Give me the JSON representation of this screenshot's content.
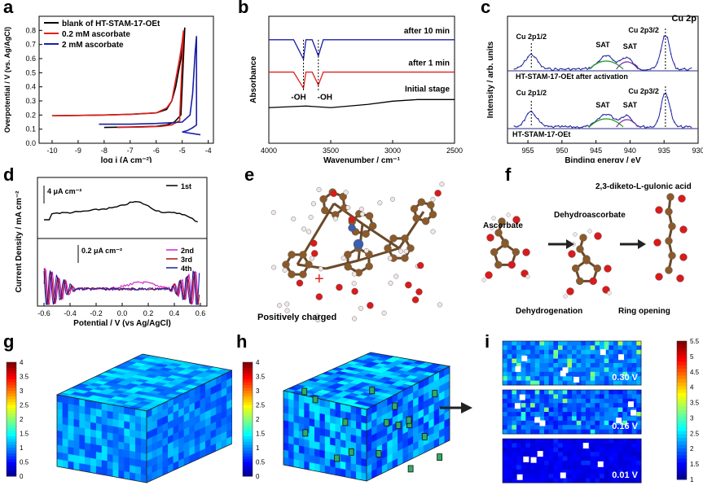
{
  "panel_letters": [
    "a",
    "b",
    "c",
    "d",
    "e",
    "f",
    "g",
    "h",
    "i"
  ],
  "chart_data": [
    {
      "type": "line",
      "panel": "a",
      "xlabel": "log i (A cm⁻²)",
      "ylabel": "Overpotential / V (vs. Ag/AgCl)",
      "xlim": [
        -10.5,
        -3.8
      ],
      "ylim": [
        0,
        0.9
      ],
      "xticks": [
        "-10",
        "-9",
        "-8",
        "-7",
        "-6",
        "-5",
        "-4"
      ],
      "yticks": [
        "0.0",
        "0.1",
        "0.2",
        "0.3",
        "0.4",
        "0.5",
        "0.6",
        "0.7",
        "0.8"
      ],
      "legend_position": "top-left",
      "series": [
        {
          "name": "blank of HT-STAM-17-OEt",
          "color": "#000000",
          "x": [
            -10,
            -9,
            -8,
            -7,
            -6,
            -5.6,
            -5.4,
            -5.25,
            -5.15,
            -5.05,
            -4.95,
            -4.9,
            -5.05,
            -5.3,
            -5.6,
            -6,
            -7,
            -8
          ],
          "y": [
            0.195,
            0.197,
            0.2,
            0.205,
            0.215,
            0.24,
            0.3,
            0.4,
            0.5,
            0.6,
            0.72,
            0.82,
            0.2,
            0.15,
            0.13,
            0.12,
            0.115,
            0.112
          ]
        },
        {
          "name": "0.2 mM ascorbate",
          "color": "#e0201b",
          "x": [
            -10,
            -9,
            -8,
            -7,
            -6,
            -5.6,
            -5.4,
            -5.3,
            -5.2,
            -5.1,
            -5.0,
            -4.95,
            -5.1,
            -5.4,
            -5.8,
            -6.5,
            -7.5
          ],
          "y": [
            0.195,
            0.197,
            0.2,
            0.205,
            0.215,
            0.25,
            0.3,
            0.4,
            0.5,
            0.6,
            0.72,
            0.8,
            0.16,
            0.13,
            0.12,
            0.115,
            0.112
          ]
        },
        {
          "name": "2 mM ascorbate",
          "color": "#1b1fa8",
          "x": [
            -8.2,
            -7,
            -6,
            -5,
            -4.7,
            -4.6,
            -4.55,
            -4.5,
            -4.45,
            -4.45,
            -4.6,
            -4.8,
            -5,
            -4.3
          ],
          "y": [
            0.135,
            0.135,
            0.14,
            0.15,
            0.2,
            0.35,
            0.5,
            0.65,
            0.76,
            0.13,
            0.11,
            0.09,
            0.08,
            0.06
          ]
        }
      ]
    },
    {
      "type": "line",
      "panel": "b",
      "xlabel": "Wavenumber / cm⁻¹",
      "ylabel": "Absorbance",
      "xlim": [
        4000,
        2500
      ],
      "xticks": [
        "4000",
        "3500",
        "3000",
        "2500"
      ],
      "annotations": [
        "after 10 min",
        "after 1 min",
        "Initial stage",
        "-OH",
        "-OH"
      ],
      "series": [
        {
          "label": "after 10 min",
          "color": "#1b1fa8",
          "x": [
            4000,
            3800,
            3720,
            3700,
            3650,
            3600,
            3560,
            3400,
            3000,
            2500
          ],
          "y": [
            3.0,
            3.0,
            2.4,
            3.0,
            3.0,
            2.5,
            3.0,
            3.0,
            3.0,
            3.0
          ]
        },
        {
          "label": "after 1 min",
          "color": "#e0201b",
          "x": [
            4000,
            3800,
            3720,
            3700,
            3650,
            3600,
            3560,
            3400,
            3000,
            2500
          ],
          "y": [
            2.0,
            2.0,
            1.5,
            2.0,
            2.0,
            1.6,
            2.0,
            2.0,
            2.0,
            2.0
          ]
        },
        {
          "label": "Initial stage",
          "color": "#000000",
          "x": [
            4000,
            3700,
            3500,
            3200,
            3000,
            2800,
            2500
          ],
          "y": [
            0.9,
            0.95,
            0.9,
            1.0,
            1.1,
            1.15,
            1.15
          ]
        }
      ]
    },
    {
      "type": "line",
      "panel": "c",
      "xlabel": "Binding energy / eV",
      "ylabel": "Intensity / arb. units",
      "xlim": [
        958,
        930
      ],
      "xticks": [
        "955",
        "950",
        "945",
        "940",
        "935",
        "930"
      ],
      "title": "Cu 2p",
      "annotations": [
        "Cu 2p1/2",
        "SAT",
        "SAT",
        "Cu 2p3/2",
        "HT-STAM-17-OEt after activation",
        "Cu 2p1/2",
        "SAT",
        "SAT",
        "Cu 2p3/2",
        "HT-STAM-17-OEt"
      ]
    },
    {
      "type": "line",
      "panel": "d",
      "xlabel": "Potential / V (vs Ag/AgCl)",
      "ylabel": "Current Density / mA cm⁻²",
      "xlim": [
        -0.65,
        0.65
      ],
      "xticks": [
        "-0.6",
        "-0.4",
        "-0.2",
        "0.0",
        "0.2",
        "0.4",
        "0.6"
      ],
      "scale_bars": [
        "4 μA cm⁻²",
        "0.2 μA cm⁻²"
      ],
      "series": [
        {
          "name": "1st",
          "color": "#000000"
        },
        {
          "name": "2nd",
          "color": "#d020d0"
        },
        {
          "name": "3rd",
          "color": "#b01010"
        },
        {
          "name": "4th",
          "color": "#1b1fa8"
        }
      ]
    },
    {
      "type": "heatmap",
      "panel": "g",
      "colorbar_ticks": [
        "4",
        "3.5",
        "3",
        "2.5",
        "2",
        "1.5",
        "1",
        "0.5",
        "0"
      ]
    },
    {
      "type": "heatmap",
      "panel": "h",
      "colorbar_ticks": [
        "4",
        "3.5",
        "3",
        "2.5",
        "2",
        "1.5",
        "1",
        "0.5",
        "0"
      ]
    },
    {
      "type": "heatmap",
      "panel": "i",
      "slice_labels": [
        "0.30 V",
        "0.16 V",
        "0.01 V"
      ],
      "colorbar_ticks": [
        "5.5",
        "5",
        "4.5",
        "4",
        "3.5",
        "3",
        "2.5",
        "2",
        "1.5",
        "1"
      ]
    }
  ],
  "panel_e": {
    "label": "Positively charged",
    "charge_symbol": "+"
  },
  "panel_f": {
    "labels": [
      "2,3-diketo-L-gulonic acid",
      "Ascorbate",
      "Dehydroascorbate",
      "Dehydrogenation",
      "Ring opening"
    ]
  },
  "colors": {
    "blue": "#1b1fa8",
    "red": "#e0201b",
    "black": "#000000",
    "magenta": "#d020d0",
    "darkred": "#b01010",
    "green": "#1a9a1a",
    "purple": "#7a2da0"
  }
}
